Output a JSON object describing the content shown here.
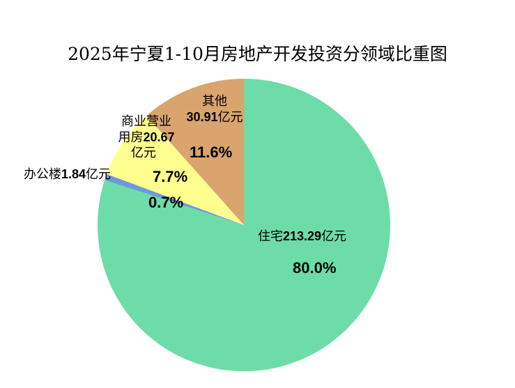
{
  "chart_data": {
    "type": "pie",
    "title": "2025年宁夏1-10月房地产开发投资分领域比重图",
    "unit": "亿元",
    "start": "12 o'clock",
    "direction": "clockwise",
    "slices": [
      {
        "name": "住宅",
        "value": 213.29,
        "value_text": "213.29",
        "percent": "80.0%",
        "color": "#6EDCA8"
      },
      {
        "name": "办公楼",
        "value": 1.84,
        "value_text": "1.84",
        "percent": "0.7%",
        "color": "#6A9BD8"
      },
      {
        "name": "商业营业用房",
        "name_line1": "商业营业",
        "name_line2": "用房",
        "value": 20.67,
        "value_text": "20.67",
        "percent": "7.7%",
        "color": "#FFFF8F"
      },
      {
        "name": "其他",
        "value": 30.91,
        "value_text": "30.91",
        "percent": "11.6%",
        "color": "#D9A46E"
      }
    ]
  }
}
